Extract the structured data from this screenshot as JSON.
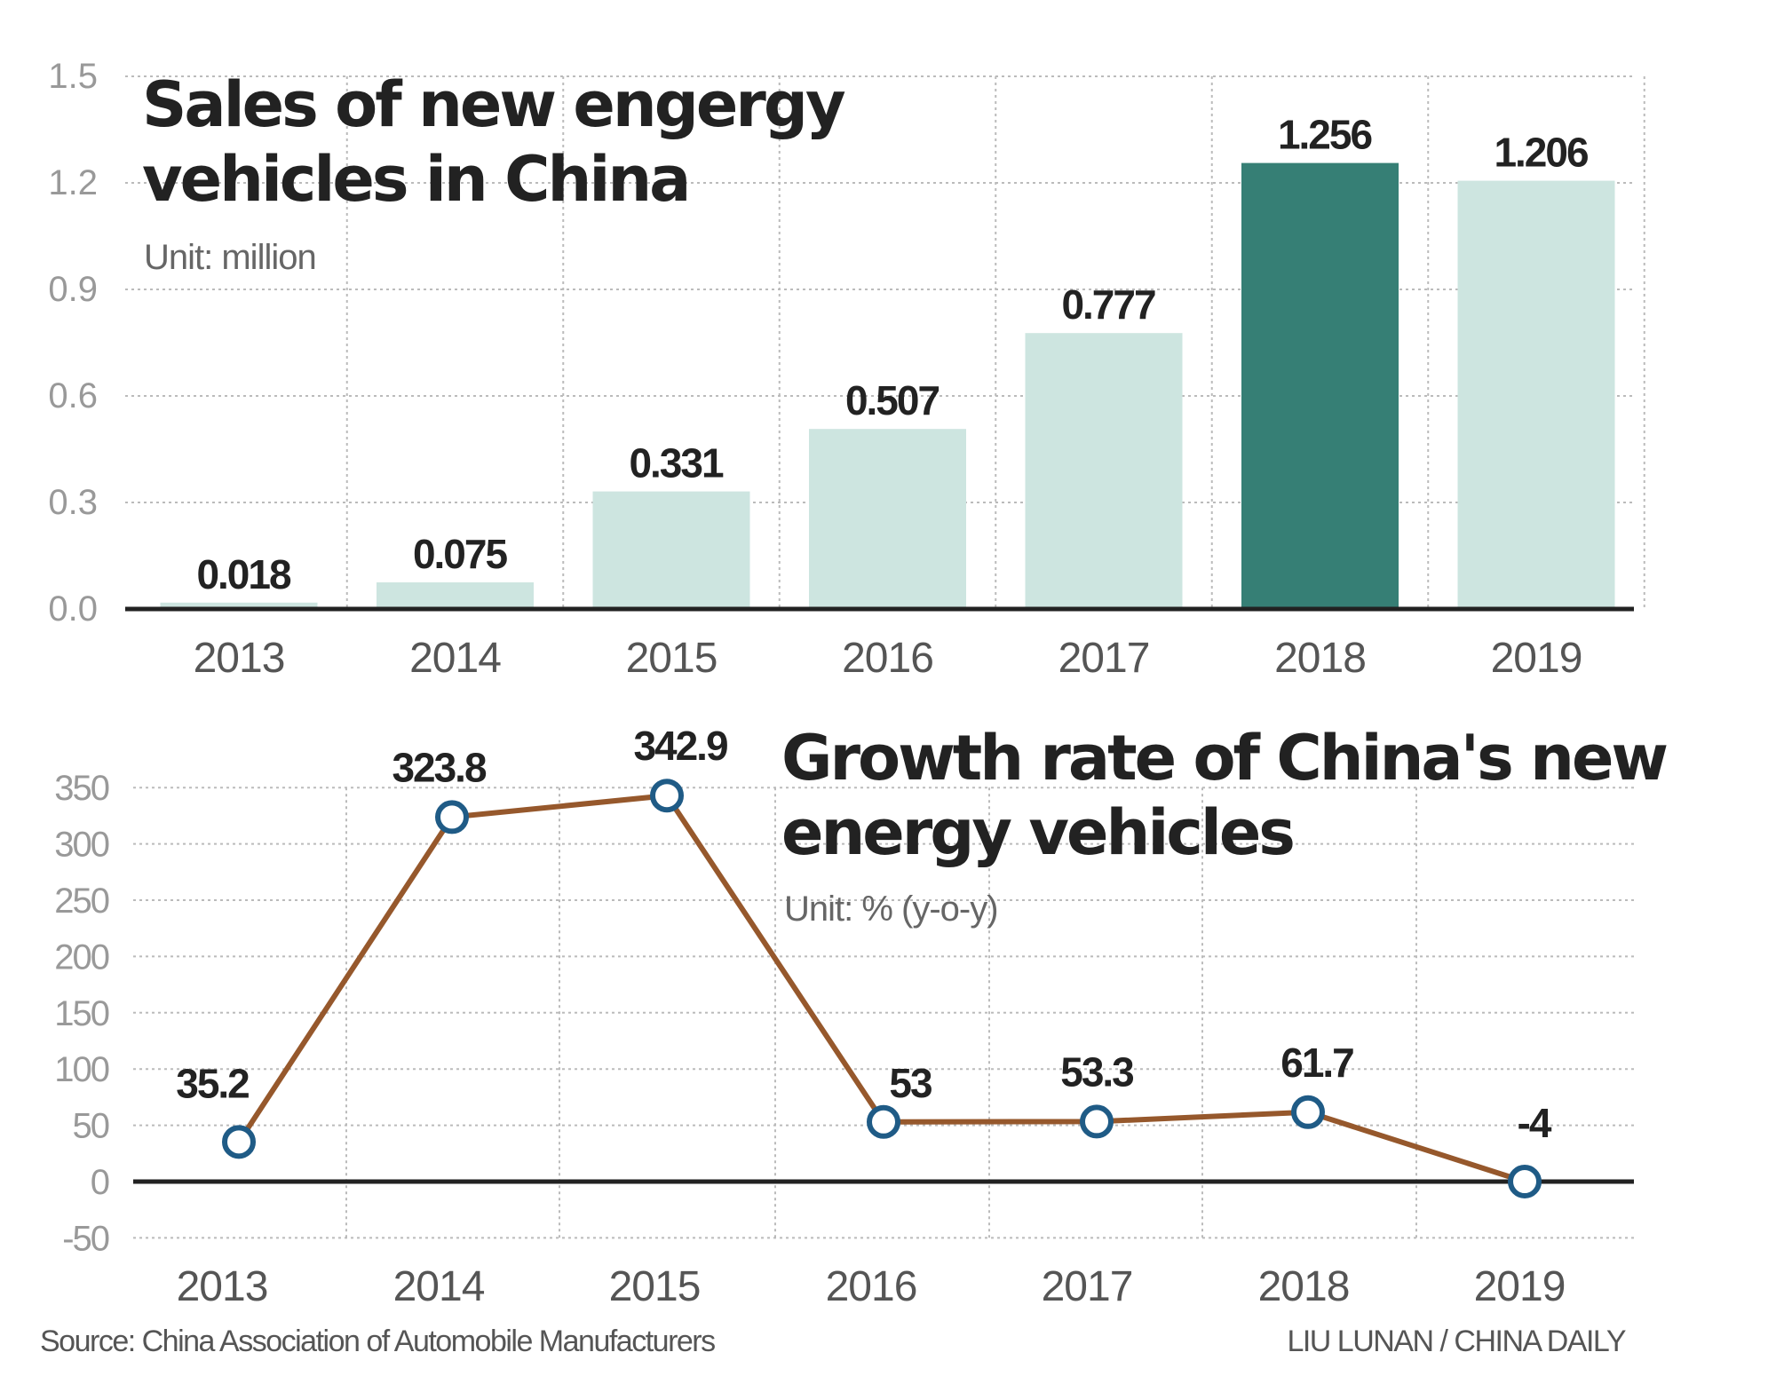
{
  "chart_data": [
    {
      "type": "bar",
      "title": "Sales of new engergy vehicles in China",
      "subtitle": "Unit: million",
      "categories": [
        "2013",
        "2014",
        "2015",
        "2016",
        "2017",
        "2018",
        "2019"
      ],
      "values": [
        0.018,
        0.075,
        0.331,
        0.507,
        0.777,
        1.256,
        1.206
      ],
      "labels": [
        "0.018",
        "0.075",
        "0.331",
        "0.507",
        "0.777",
        "1.256",
        "1.206"
      ],
      "yticks": [
        "0.0",
        "0.3",
        "0.6",
        "0.9",
        "1.2",
        "1.5"
      ],
      "ylim": [
        0,
        1.5
      ],
      "grid": true,
      "highlight_category": "2018",
      "colors": {
        "bar": "#cde5e0",
        "highlight": "#367f75"
      }
    },
    {
      "type": "line",
      "title": "Growth rate of China's new energy vehicles",
      "subtitle": "Unit: % (y-o-y)",
      "categories": [
        "2013",
        "2014",
        "2015",
        "2016",
        "2017",
        "2018",
        "2019"
      ],
      "values": [
        35.2,
        323.8,
        342.9,
        53,
        53.3,
        61.7,
        -4
      ],
      "labels": [
        "35.2",
        "323.8",
        "342.9",
        "53",
        "53.3",
        "61.7",
        "-4"
      ],
      "yticks": [
        "-50",
        "0",
        "50",
        "100",
        "150",
        "200",
        "250",
        "300",
        "350"
      ],
      "ylim": [
        -50,
        350
      ],
      "grid": true,
      "colors": {
        "line": "#96582c",
        "marker": "#1f5b86"
      }
    }
  ],
  "footer": {
    "source": "Source: China Association of Automobile Manufacturers",
    "credit": "LIU LUNAN / CHINA DAILY"
  }
}
